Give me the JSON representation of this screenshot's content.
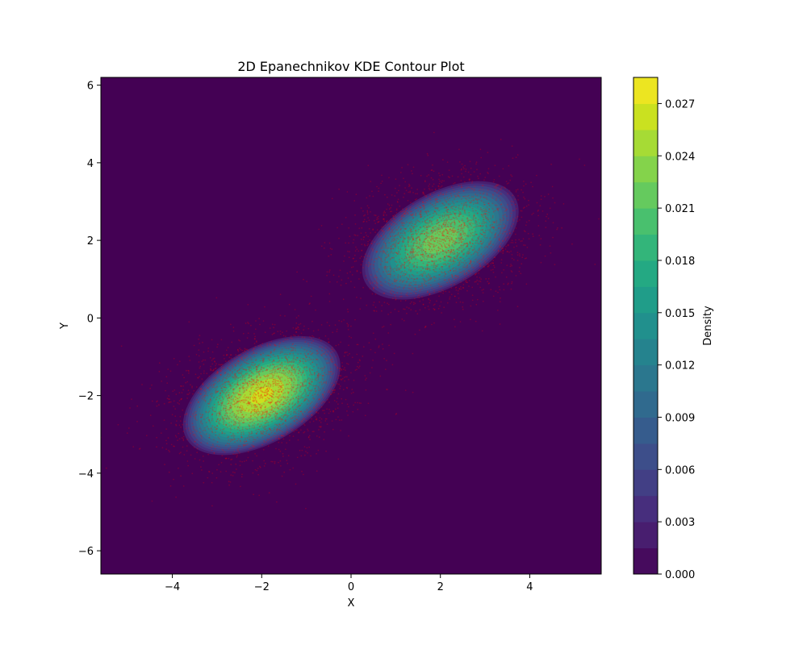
{
  "chart_data": {
    "type": "contour",
    "title": "2D Epanechnikov KDE Contour Plot",
    "xlabel": "X",
    "ylabel": "Y",
    "xlim": [
      -5.6,
      5.6
    ],
    "ylim": [
      -6.6,
      6.2
    ],
    "xticks": [
      -4,
      -2,
      0,
      2,
      4
    ],
    "yticks": [
      -6,
      -4,
      -2,
      0,
      2,
      4,
      6
    ],
    "grid": false,
    "clusters": [
      {
        "center": [
          -2,
          -2
        ],
        "peak_density": 0.026,
        "orientation_deg": 30
      },
      {
        "center": [
          2,
          2
        ],
        "peak_density": 0.022,
        "orientation_deg": 30
      }
    ],
    "scatter": {
      "color": "#ff0000",
      "alpha": 0.25
    },
    "colorbar": {
      "label": "Density",
      "min": 0.0,
      "max": 0.0285,
      "step": 0.0015,
      "ticks": [
        0.0,
        0.003,
        0.006,
        0.009,
        0.012,
        0.015,
        0.018,
        0.021,
        0.024,
        0.027
      ],
      "tick_labels": [
        "0.000",
        "0.003",
        "0.006",
        "0.009",
        "0.012",
        "0.015",
        "0.018",
        "0.021",
        "0.024",
        "0.027"
      ],
      "colormap": "viridis"
    }
  }
}
